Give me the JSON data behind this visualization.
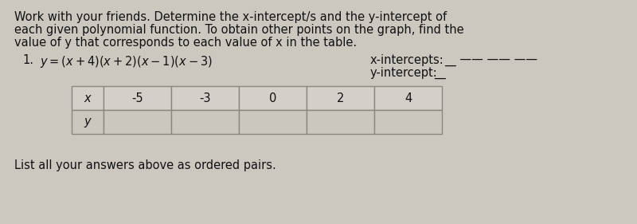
{
  "bg_color": "#ccc8c0",
  "line1": "Work with your friends. Determine the x-intercept/s and the y-intercept of",
  "line2": "each given polynomial function. To obtain other points on the graph, find the",
  "line3": "value of y that corresponds to each value of x in the table.",
  "prob_num": "1.",
  "equation": "y = (x + 4)(x + 2)(x − 1)(x − 3)",
  "xi_label": "x-intercepts:",
  "yi_label": "y-intercept:",
  "xi_blanks": "__ —— —— ——",
  "yi_blank": "__",
  "table_headers": [
    "x",
    "-5",
    "-3",
    "0",
    "2",
    "4"
  ],
  "table_y_label": "y",
  "footer": "List all your answers above as ordered pairs.",
  "table_bg": "#c8c4bc",
  "cell_bg": "#d4d0c9",
  "empty_cell_bg": "#cbc7bf"
}
